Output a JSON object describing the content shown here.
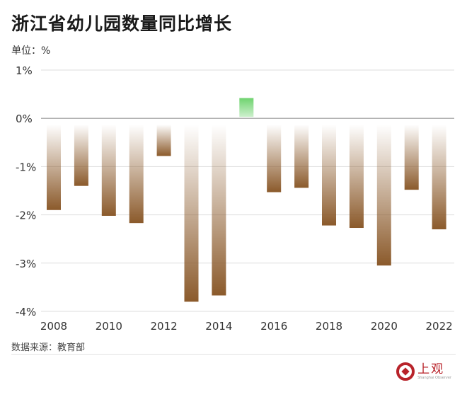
{
  "header": {
    "title": "浙江省幼儿园数量同比增长",
    "unit": "单位：%"
  },
  "footer": {
    "source": "数据来源：教育部",
    "brand_name": "上观",
    "brand_sub": "Shanghai Observer"
  },
  "colors": {
    "negative_bar": "#8b5a2b",
    "positive_bar": "#6fd36f",
    "grid": "#dddddd",
    "zero_line": "#999999"
  },
  "chart_data": {
    "type": "bar",
    "title": "浙江省幼儿园数量同比增长",
    "xlabel": "",
    "ylabel": "",
    "unit": "%",
    "categories": [
      "2008",
      "2009",
      "2010",
      "2011",
      "2012",
      "2013",
      "2014",
      "2015",
      "2016",
      "2017",
      "2018",
      "2019",
      "2020",
      "2021",
      "2022"
    ],
    "values": [
      -1.9,
      -1.4,
      -2.02,
      -2.17,
      -0.78,
      -3.8,
      -3.67,
      0.42,
      -1.53,
      -1.44,
      -2.22,
      -2.27,
      -3.05,
      -1.48,
      -2.3
    ],
    "ylim": [
      -4,
      1
    ],
    "yticks": [
      1,
      0,
      -1,
      -2,
      -3,
      -4
    ],
    "ytick_labels": [
      "1%",
      "0%",
      "-1%",
      "-2%",
      "-3%",
      "-4%"
    ],
    "xtick_labels": [
      "2008",
      "2010",
      "2012",
      "2014",
      "2016",
      "2018",
      "2020",
      "2022"
    ],
    "grid": true,
    "legend": "none"
  }
}
